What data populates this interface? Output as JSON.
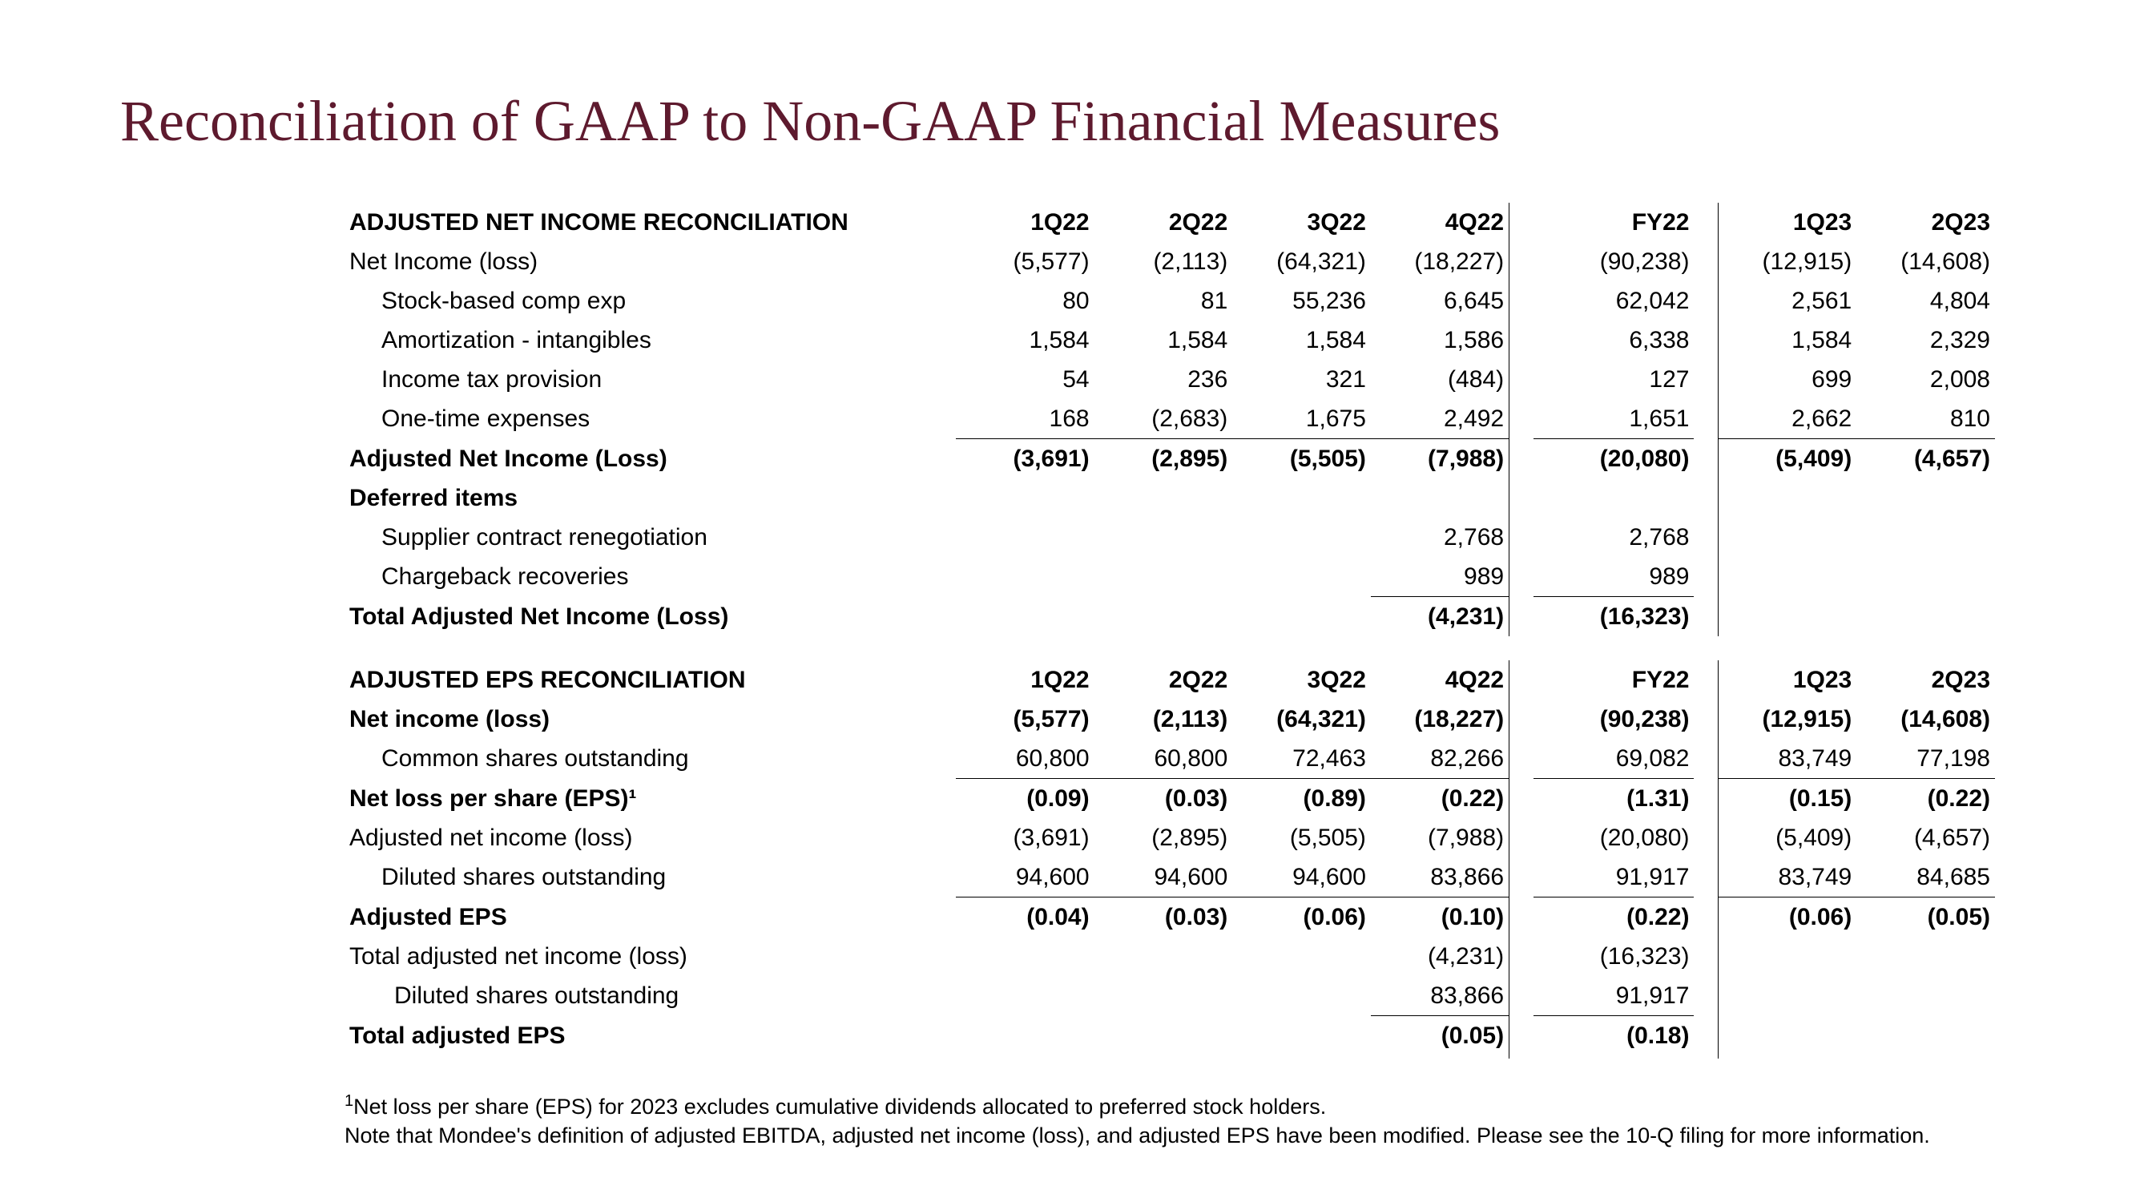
{
  "title": "Reconciliation of GAAP to Non-GAAP Financial Measures",
  "colors": {
    "title": "#5e1a2e",
    "text": "#000000",
    "background": "#ffffff",
    "rule": "#000000"
  },
  "typography": {
    "title_family": "Georgia",
    "title_size_pt": 54,
    "body_family": "Arial",
    "body_size_pt": 22
  },
  "columns": [
    "1Q22",
    "2Q22",
    "3Q22",
    "4Q22",
    "FY22",
    "1Q23",
    "2Q23"
  ],
  "section1": {
    "header": "ADJUSTED NET INCOME RECONCILIATION",
    "rows": [
      {
        "label": "Net Income (loss)",
        "indent": 0,
        "bold": false,
        "vals": [
          "(5,577)",
          "(2,113)",
          "(64,321)",
          "(18,227)",
          "(90,238)",
          "(12,915)",
          "(14,608)"
        ]
      },
      {
        "label": "Stock-based comp exp",
        "indent": 1,
        "bold": false,
        "vals": [
          "80",
          "81",
          "55,236",
          "6,645",
          "62,042",
          "2,561",
          "4,804"
        ]
      },
      {
        "label": "Amortization - intangibles",
        "indent": 1,
        "bold": false,
        "vals": [
          "1,584",
          "1,584",
          "1,584",
          "1,586",
          "6,338",
          "1,584",
          "2,329"
        ]
      },
      {
        "label": "Income tax provision",
        "indent": 1,
        "bold": false,
        "vals": [
          "54",
          "236",
          "321",
          "(484)",
          "127",
          "699",
          "2,008"
        ]
      },
      {
        "label": "One-time expenses",
        "indent": 1,
        "bold": false,
        "underline": true,
        "vals": [
          "168",
          "(2,683)",
          "1,675",
          "2,492",
          "1,651",
          "2,662",
          "810"
        ]
      },
      {
        "label": "Adjusted Net Income (Loss)",
        "indent": 0,
        "bold": true,
        "vals": [
          "(3,691)",
          "(2,895)",
          "(5,505)",
          "(7,988)",
          "(20,080)",
          "(5,409)",
          "(4,657)"
        ]
      },
      {
        "label": "Deferred items",
        "indent": 0,
        "bold": true,
        "vals": [
          "",
          "",
          "",
          "",
          "",
          "",
          ""
        ]
      },
      {
        "label": "Supplier contract renegotiation",
        "indent": 1,
        "bold": false,
        "vals": [
          "",
          "",
          "",
          "2,768",
          "2,768",
          "",
          ""
        ]
      },
      {
        "label": "Chargeback recoveries",
        "indent": 1,
        "bold": false,
        "underline_partial": [
          "c4",
          "c5"
        ],
        "vals": [
          "",
          "",
          "",
          "989",
          "989",
          "",
          ""
        ]
      },
      {
        "label": "Total Adjusted Net Income (Loss)",
        "indent": 0,
        "bold": true,
        "vals": [
          "",
          "",
          "",
          "(4,231)",
          "(16,323)",
          "",
          ""
        ]
      }
    ]
  },
  "section2": {
    "header": "ADJUSTED EPS RECONCILIATION",
    "rows": [
      {
        "label": "Net income (loss)",
        "indent": 0,
        "bold": true,
        "vals": [
          "(5,577)",
          "(2,113)",
          "(64,321)",
          "(18,227)",
          "(90,238)",
          "(12,915)",
          "(14,608)"
        ]
      },
      {
        "label": "Common shares outstanding",
        "indent": 1,
        "bold": false,
        "underline": true,
        "vals": [
          "60,800",
          "60,800",
          "72,463",
          "82,266",
          "69,082",
          "83,749",
          "77,198"
        ]
      },
      {
        "label": "Net loss per share (EPS)¹",
        "indent": 0,
        "bold": true,
        "vals": [
          "(0.09)",
          "(0.03)",
          "(0.89)",
          "(0.22)",
          "(1.31)",
          "(0.15)",
          "(0.22)"
        ]
      },
      {
        "label": "Adjusted net income (loss)",
        "indent": 0,
        "bold": false,
        "vals": [
          "(3,691)",
          "(2,895)",
          "(5,505)",
          "(7,988)",
          "(20,080)",
          "(5,409)",
          "(4,657)"
        ]
      },
      {
        "label": "Diluted shares outstanding",
        "indent": 1,
        "bold": false,
        "underline": true,
        "vals": [
          "94,600",
          "94,600",
          "94,600",
          "83,866",
          "91,917",
          "83,749",
          "84,685"
        ]
      },
      {
        "label": "Adjusted EPS",
        "indent": 0,
        "bold": true,
        "vals": [
          "(0.04)",
          "(0.03)",
          "(0.06)",
          "(0.10)",
          "(0.22)",
          "(0.06)",
          "(0.05)"
        ]
      },
      {
        "label": "Total adjusted net income (loss)",
        "indent": 0,
        "bold": false,
        "vals": [
          "",
          "",
          "",
          "(4,231)",
          "(16,323)",
          "",
          ""
        ]
      },
      {
        "label": "Diluted shares outstanding",
        "indent": 2,
        "bold": false,
        "underline_partial": [
          "c4",
          "c5"
        ],
        "vals": [
          "",
          "",
          "",
          "83,866",
          "91,917",
          "",
          ""
        ]
      },
      {
        "label": "Total adjusted EPS",
        "indent": 0,
        "bold": true,
        "vals": [
          "",
          "",
          "",
          "(0.05)",
          "(0.18)",
          "",
          ""
        ]
      }
    ]
  },
  "footnotes": {
    "line1": "Net loss per share (EPS) for 2023 excludes cumulative dividends allocated to preferred stock holders.",
    "line2": "Note that Mondee's definition of adjusted EBITDA, adjusted net income (loss), and adjusted EPS have been modified. Please see the 10-Q filing for more information.",
    "superscript": "1"
  }
}
